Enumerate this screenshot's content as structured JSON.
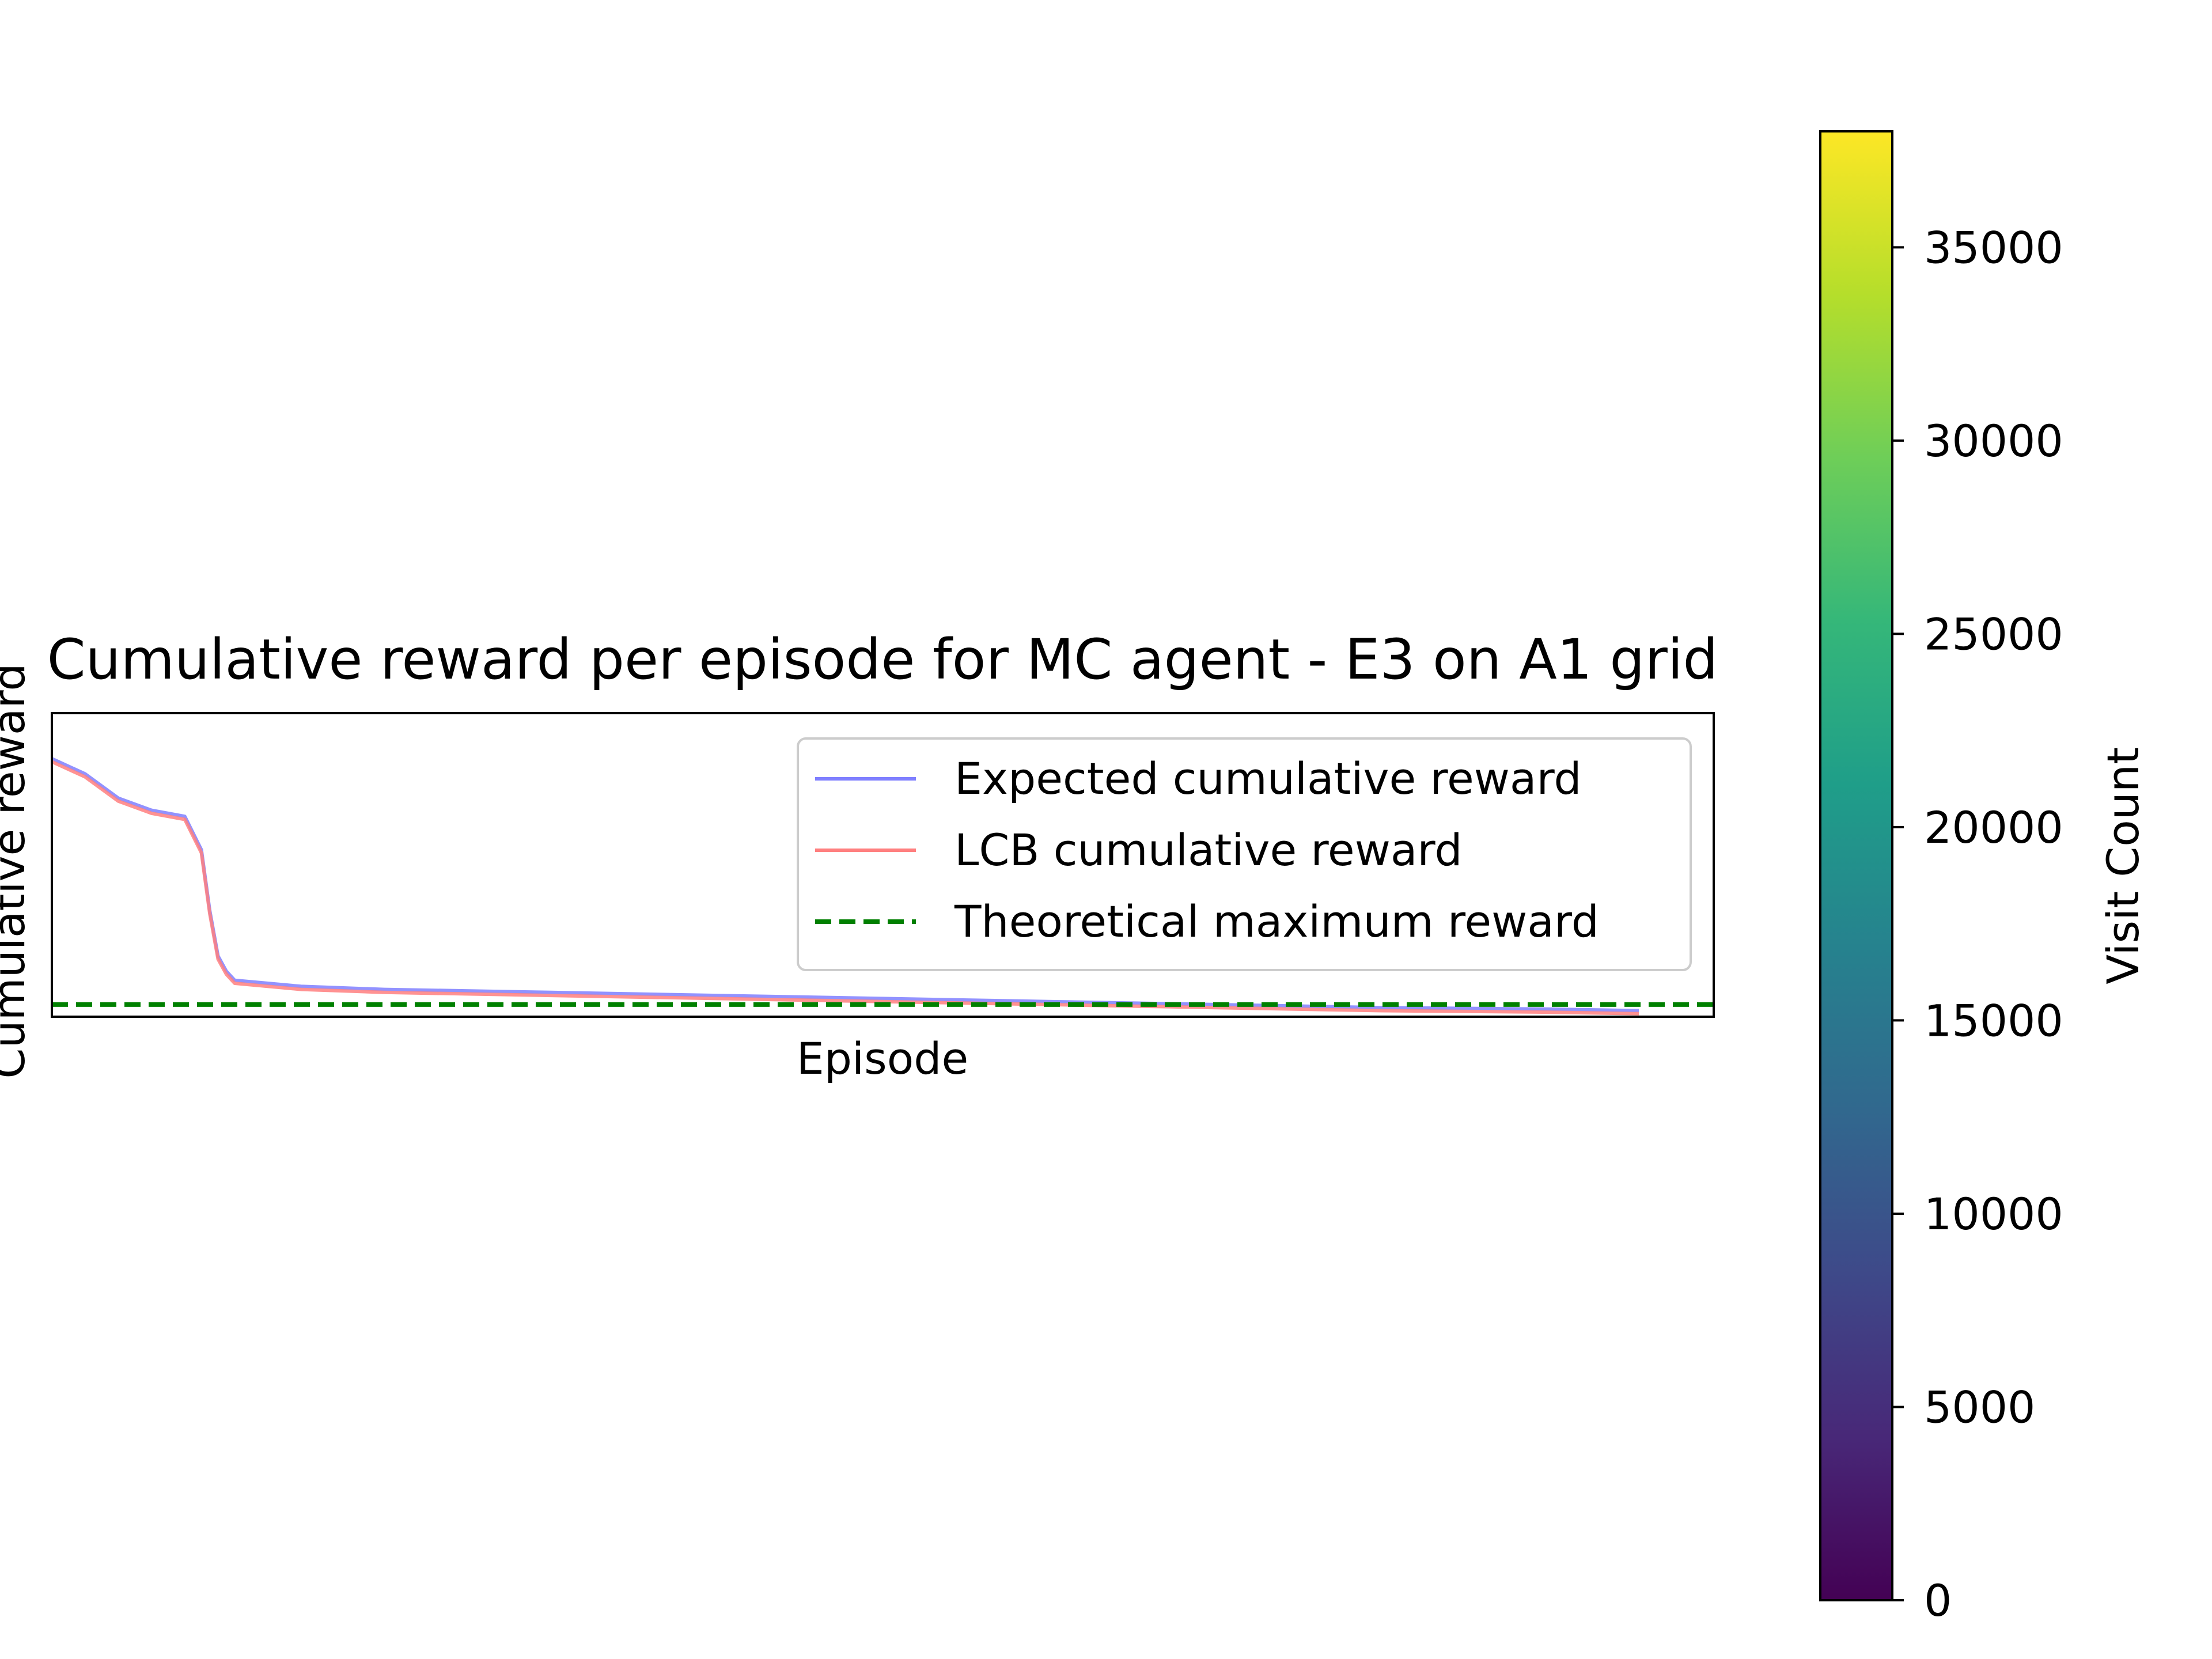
{
  "chart_data": [
    {
      "type": "line",
      "title": "Cumulative reward per episode for MC agent - E3 on A1 grid",
      "xlabel": "Episode",
      "ylabel": "Cumulative reward",
      "ticks_visible": false,
      "grid": false,
      "legend_position": "top-right",
      "x_range": [
        0,
        1000
      ],
      "y_range": [
        0,
        100
      ],
      "series": [
        {
          "name": "Expected cumulative reward",
          "color": "#7f7fff",
          "style": "solid",
          "segments": [
            {
              "x": [
                0,
                20,
                40,
                60,
                80,
                90,
                95,
                100,
                105,
                110,
                150,
                200,
                300,
                400,
                500,
                600,
                700,
                800,
                900,
                955
              ],
              "y": [
                85,
                80,
                72,
                68,
                66,
                55,
                35,
                20,
                15,
                12,
                10,
                9,
                8,
                7,
                6,
                5,
                4,
                3,
                2.5,
                2
              ]
            }
          ]
        },
        {
          "name": "LCB cumulative reward",
          "color": "#ff7f7f",
          "style": "solid",
          "segments": [
            {
              "x": [
                0,
                20,
                40,
                60,
                80,
                90,
                95,
                100,
                105,
                110,
                150,
                200,
                300,
                400,
                500,
                600,
                700,
                800,
                900,
                955
              ],
              "y": [
                84,
                79,
                71,
                67,
                65,
                54,
                34,
                19,
                14,
                11,
                9,
                8,
                7,
                6,
                5,
                4,
                3,
                2,
                1.5,
                1
              ]
            }
          ]
        },
        {
          "name": "Theoretical maximum reward",
          "color": "#008000",
          "style": "dashed",
          "segments": [
            {
              "x": [
                0,
                1000
              ],
              "y": [
                4,
                4
              ]
            }
          ]
        }
      ]
    },
    {
      "type": "colorbar",
      "label": "Visit Count",
      "colormap": "viridis",
      "range": [
        0,
        38000
      ],
      "ticks": [
        0,
        5000,
        10000,
        15000,
        20000,
        25000,
        30000,
        35000
      ],
      "tick_labels": [
        "0",
        "5000",
        "10000",
        "15000",
        "20000",
        "25000",
        "30000",
        "35000"
      ],
      "stops": [
        "#440154",
        "#482878",
        "#3e4989",
        "#31688e",
        "#26828e",
        "#1f9e89",
        "#35b779",
        "#6ece58",
        "#b5de2b",
        "#fde725"
      ]
    }
  ]
}
